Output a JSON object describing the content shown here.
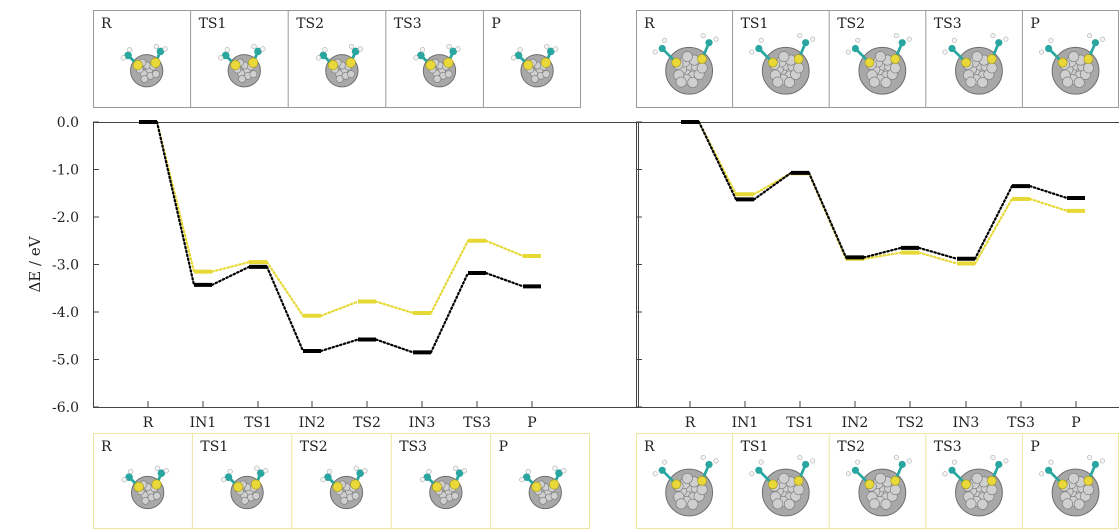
{
  "chart_data": [
    {
      "type": "line",
      "ylabel": "ΔE / eV",
      "categories": [
        "R",
        "IN1",
        "TS1",
        "IN2",
        "TS2",
        "IN3",
        "TS3",
        "P"
      ],
      "ylim": [
        -6.0,
        0.0
      ],
      "yticks": [
        "0.0",
        "-1.0",
        "-2.0",
        "-3.0",
        "-4.0",
        "-5.0",
        "-6.0"
      ],
      "series": [
        {
          "color": "#000000",
          "values": [
            0.0,
            -3.43,
            -3.05,
            -4.82,
            -4.58,
            -4.85,
            -3.18,
            -3.46
          ]
        },
        {
          "color": "#e6d835",
          "values": [
            0.0,
            -3.15,
            -2.95,
            -4.08,
            -3.78,
            -4.02,
            -2.5,
            -2.82
          ]
        }
      ],
      "top_panels": [
        "R",
        "TS1",
        "TS2",
        "TS3",
        "P"
      ],
      "bottom_panels": [
        "R",
        "TS1",
        "TS2",
        "TS3",
        "P"
      ]
    },
    {
      "type": "line",
      "ylabel": "",
      "categories": [
        "R",
        "IN1",
        "TS1",
        "IN2",
        "TS2",
        "IN3",
        "TS3",
        "P"
      ],
      "ylim": [
        -6.0,
        0.0
      ],
      "series": [
        {
          "color": "#000000",
          "values": [
            0.0,
            -1.63,
            -1.07,
            -2.85,
            -2.65,
            -2.88,
            -1.35,
            -1.6
          ]
        },
        {
          "color": "#e6d835",
          "values": [
            0.0,
            -1.52,
            -1.08,
            -2.88,
            -2.75,
            -2.98,
            -1.62,
            -1.87
          ]
        }
      ],
      "top_panels": [
        "R",
        "TS1",
        "TS2",
        "TS3",
        "P"
      ],
      "bottom_panels": [
        "R",
        "TS1",
        "TS2",
        "TS3",
        "P"
      ]
    }
  ],
  "colors": {
    "black_series": "#000000",
    "yellow_series": "#e6d835",
    "top_panel_border": "#9a9a9a",
    "bottom_panel_border": "#ece6a0"
  }
}
